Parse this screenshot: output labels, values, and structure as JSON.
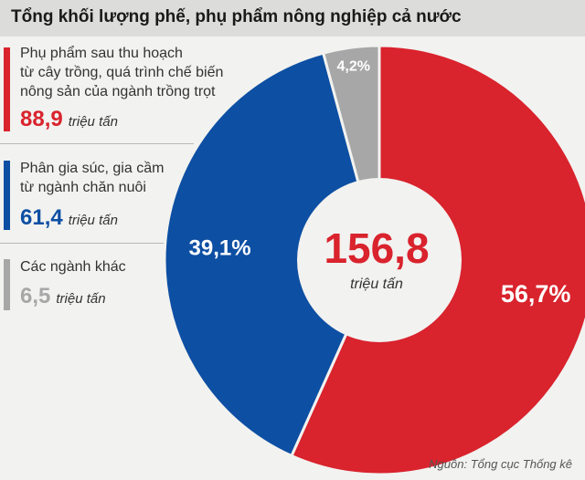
{
  "title": "Tổng khối lượng phế, phụ phẩm nông nghiệp cả nước",
  "legend": [
    {
      "lines": [
        "Phụ phẩm sau thu hoạch",
        "từ cây trồng, quá trình chế biến",
        "nông sản của ngành trồng trọt"
      ],
      "value": "88,9",
      "unit": "triệu tấn",
      "color": "#d9232d"
    },
    {
      "lines": [
        "Phân gia súc, gia cầm",
        "từ ngành chăn nuôi"
      ],
      "value": "61,4",
      "unit": "triệu tấn",
      "color": "#0d4fa3"
    },
    {
      "lines": [
        "Các ngành khác"
      ],
      "value": "6,5",
      "unit": "triệu tấn",
      "color": "#a7a7a7"
    }
  ],
  "center": {
    "total": "156,8",
    "unit": "triệu tấn"
  },
  "source": "Nguồn: Tổng cục Thống kê",
  "chart_data": {
    "type": "pie",
    "style": "donut",
    "title": "Tổng khối lượng phế, phụ phẩm nông nghiệp cả nước",
    "labels": [
      "56,7%",
      "39,1%",
      "4,2%"
    ],
    "values": [
      56.7,
      39.1,
      4.2
    ],
    "colors": [
      "#d9232d",
      "#0d4fa3",
      "#a7a7a7"
    ],
    "start": "top",
    "direction": "clockwise"
  }
}
